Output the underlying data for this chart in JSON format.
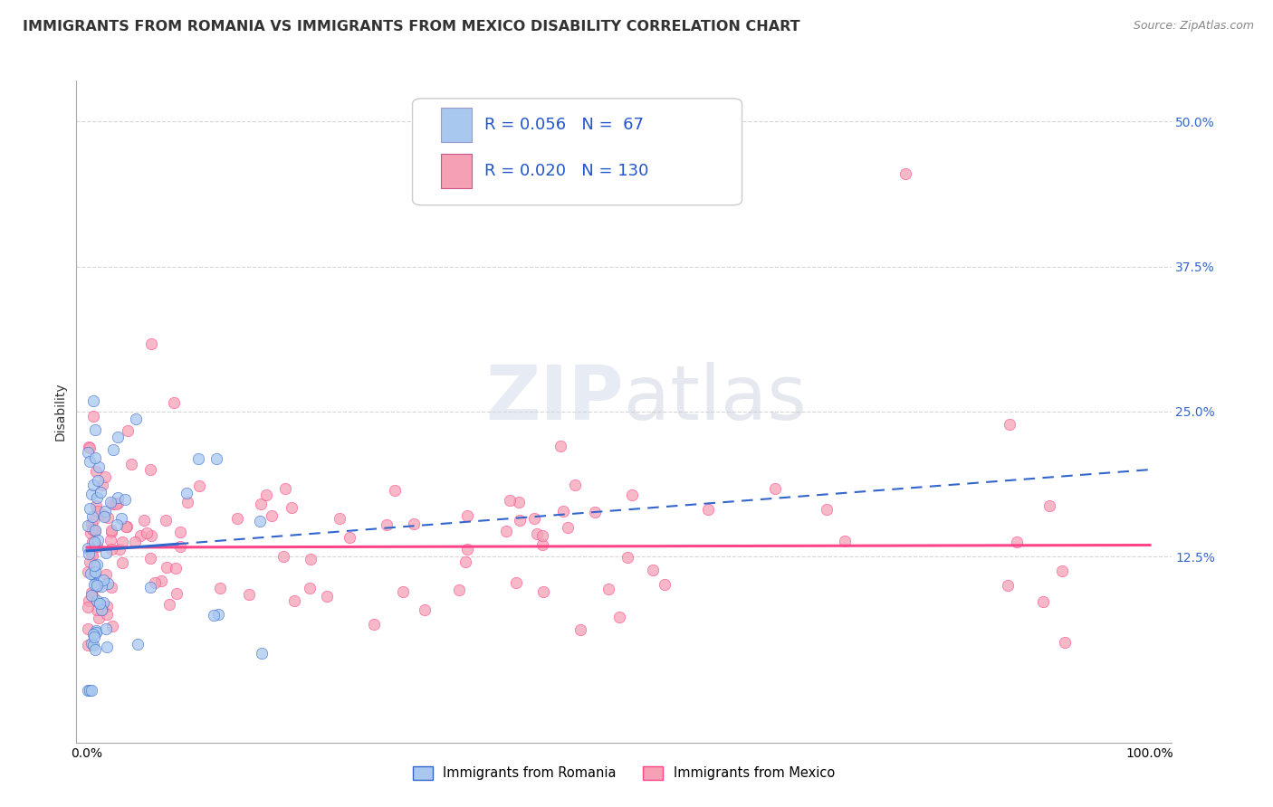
{
  "title": "IMMIGRANTS FROM ROMANIA VS IMMIGRANTS FROM MEXICO DISABILITY CORRELATION CHART",
  "source_text": "Source: ZipAtlas.com",
  "ylabel": "Disability",
  "color_romania": "#A8C8F0",
  "color_mexico": "#F5A0B5",
  "trendline_romania_color": "#3366CC",
  "trendline_mexico_color": "#FF4488",
  "background_color": "#FFFFFF",
  "grid_color": "#CCCCCC",
  "title_fontsize": 11.5,
  "axis_label_fontsize": 10,
  "tick_fontsize": 10,
  "legend_fontsize": 13
}
